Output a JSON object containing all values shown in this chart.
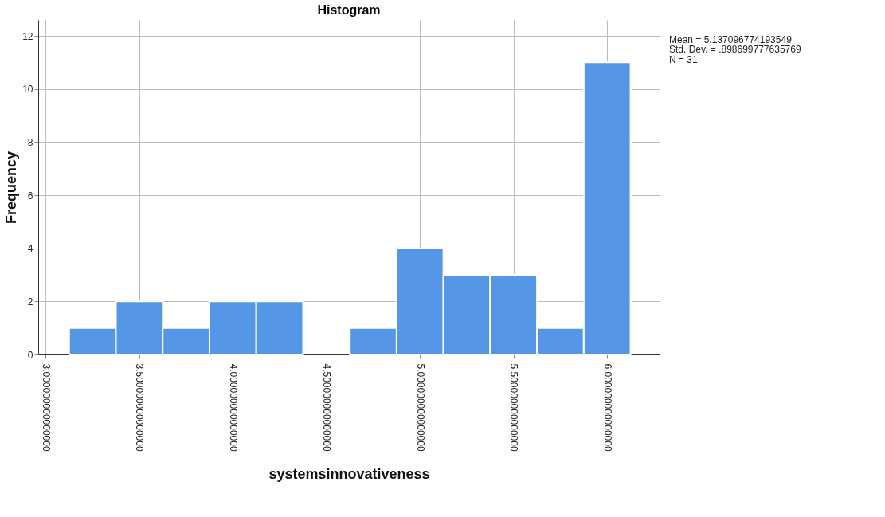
{
  "chart_data": {
    "type": "histogram",
    "title": "Histogram",
    "xlabel": "systemsinnovativeness",
    "ylabel": "Frequency",
    "bins": [
      3.125,
      3.375,
      3.625,
      3.875,
      4.125,
      4.375,
      4.625,
      4.875,
      5.125,
      5.375,
      5.625,
      5.875,
      6.125
    ],
    "values": [
      1,
      2,
      1,
      2,
      2,
      0,
      1,
      4,
      3,
      3,
      1,
      11
    ],
    "color": "#5596e6",
    "xlim": [
      2.96,
      6.28
    ],
    "xticks": [
      {
        "value": 3,
        "label": "3.000000000000000"
      },
      {
        "value": 3.5,
        "label": "3.500000000000000"
      },
      {
        "value": 4,
        "label": "4.000000000000000"
      },
      {
        "value": 4.5,
        "label": "4.500000000000000"
      },
      {
        "value": 5,
        "label": "5.000000000000000"
      },
      {
        "value": 5.5,
        "label": "5.500000000000000"
      },
      {
        "value": 6,
        "label": "6.000000000000000"
      }
    ],
    "ylim": [
      0,
      12.6
    ],
    "yticks": [
      0,
      2,
      4,
      6,
      8,
      10,
      12
    ],
    "grid": true,
    "annotations": [
      "Mean = 5.137096774193549",
      "Std. Dev. = .898699777635769",
      "N = 31"
    ]
  }
}
